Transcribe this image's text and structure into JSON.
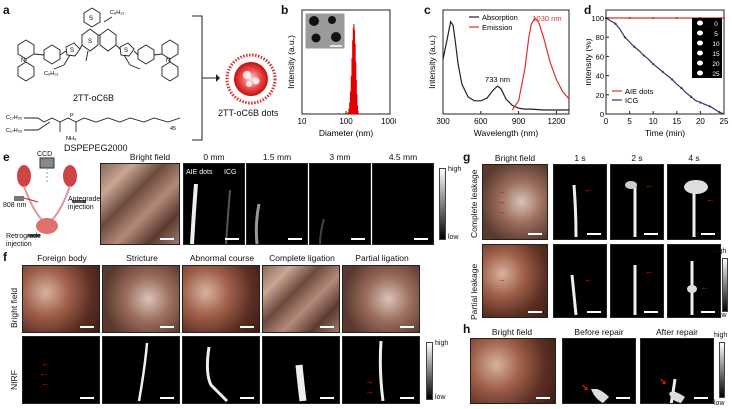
{
  "panels": {
    "a": {
      "label": "a",
      "compound_top": "2TT-oC6B",
      "compound_bottom": "DSPEPEG2000",
      "dots_label": "2TT-oC6B dots",
      "chem_fragments": [
        "N",
        "N",
        "S",
        "S",
        "S",
        "S",
        "C₆H₁₃",
        "C₆H₁₃",
        "C₁₇H₃₅",
        "NH₄",
        "O",
        "P",
        "45"
      ]
    },
    "b": {
      "label": "b"
    },
    "c": {
      "label": "c",
      "peak1": "733 nm",
      "peak2": "1030 nm"
    },
    "d": {
      "label": "d",
      "inset_labels": [
        "0",
        "5",
        "10",
        "15",
        "20",
        "25"
      ]
    },
    "e": {
      "label": "e",
      "ccd": "CCD",
      "laser": "808 nm",
      "antegrade": "Antegrade injection",
      "retrograde": "Retrograde injection",
      "headers": [
        "Bright field",
        "0 mm",
        "1.5 mm",
        "3 mm",
        "4.5 mm"
      ],
      "aie": "AIE dots",
      "icg": "ICG",
      "high": "high",
      "low": "low"
    },
    "f": {
      "label": "f",
      "headers": [
        "Foreign body",
        "Stricture",
        "Abnormal course",
        "Complete ligation",
        "Partial ligation"
      ],
      "row1": "Bright field",
      "row2": "NIRF",
      "high": "high",
      "low": "low"
    },
    "g": {
      "label": "g",
      "headers": [
        "Bright field",
        "1 s",
        "2 s",
        "4 s"
      ],
      "row1": "Complete leakage",
      "row2": "Partial leakage",
      "high": "high",
      "low": "low"
    },
    "h": {
      "label": "h",
      "headers": [
        "Bright field",
        "Before repair",
        "After repair"
      ],
      "high": "high",
      "low": "low"
    }
  },
  "chart_data": [
    {
      "type": "bar",
      "panel": "b",
      "xlabel": "Diameter (nm)",
      "ylabel": "Intensity (a.u.)",
      "xscale": "log",
      "xlim": [
        10,
        1000
      ],
      "xticks": [
        "10",
        "100",
        "1000"
      ],
      "color": "#e00000",
      "x": [
        110,
        115,
        120,
        125,
        130,
        135,
        140,
        145,
        150,
        155,
        160,
        165,
        170,
        175,
        180,
        185,
        190
      ],
      "values": [
        0.02,
        0.06,
        0.13,
        0.25,
        0.42,
        0.62,
        0.82,
        0.96,
        1.0,
        0.93,
        0.78,
        0.58,
        0.38,
        0.22,
        0.1,
        0.04,
        0.01
      ]
    },
    {
      "type": "line",
      "panel": "c",
      "xlabel": "Wavelength (nm)",
      "ylabel": "Intensity (a.u.)",
      "xlim": [
        300,
        1300
      ],
      "xticks": [
        "300",
        "600",
        "900",
        "1200"
      ],
      "series": [
        {
          "name": "Absorption",
          "color": "#222222",
          "x": [
            300,
            330,
            360,
            380,
            400,
            420,
            450,
            500,
            550,
            600,
            650,
            700,
            733,
            760,
            800,
            850,
            900,
            950,
            1000,
            1100,
            1200,
            1300
          ],
          "y": [
            0.55,
            0.75,
            0.96,
            0.92,
            0.72,
            0.5,
            0.28,
            0.14,
            0.1,
            0.1,
            0.13,
            0.22,
            0.26,
            0.23,
            0.12,
            0.05,
            0.02,
            0.01,
            0.01,
            0.0,
            0.0,
            0.0
          ]
        },
        {
          "name": "Emission",
          "color": "#e0302a",
          "x": [
            850,
            900,
            950,
            980,
            1000,
            1030,
            1060,
            1100,
            1150,
            1200,
            1250,
            1300
          ],
          "y": [
            0.0,
            0.1,
            0.45,
            0.78,
            0.93,
            1.0,
            0.95,
            0.78,
            0.52,
            0.33,
            0.2,
            0.12
          ]
        }
      ]
    },
    {
      "type": "line",
      "panel": "d",
      "xlabel": "Time (min)",
      "ylabel": "Intensity (%)",
      "xlim": [
        0,
        25
      ],
      "ylim": [
        0,
        100
      ],
      "xticks": [
        "0",
        "5",
        "10",
        "15",
        "20",
        "25"
      ],
      "yticks": [
        "0",
        "20",
        "40",
        "60",
        "80",
        "100"
      ],
      "series": [
        {
          "name": "AIE dots",
          "color": "#e0302a",
          "x": [
            0,
            2.5,
            5,
            7.5,
            10,
            12.5,
            15,
            17.5,
            20,
            22.5,
            25
          ],
          "y": [
            100,
            100,
            100,
            100,
            100,
            100,
            100,
            100,
            100,
            100,
            100
          ]
        },
        {
          "name": "ICG",
          "color": "#2e3a66",
          "x": [
            0,
            1,
            2,
            3,
            4,
            5,
            6,
            7,
            8,
            9,
            10,
            11,
            12,
            13,
            14,
            15,
            16,
            17,
            18,
            19,
            20,
            21,
            22,
            23,
            24,
            25
          ],
          "y": [
            100,
            97,
            94,
            88,
            80,
            75,
            70,
            66,
            61,
            57,
            52,
            48,
            44,
            40,
            36,
            31,
            27,
            22,
            18,
            14,
            12,
            10,
            8,
            5,
            2,
            0
          ]
        }
      ]
    }
  ]
}
